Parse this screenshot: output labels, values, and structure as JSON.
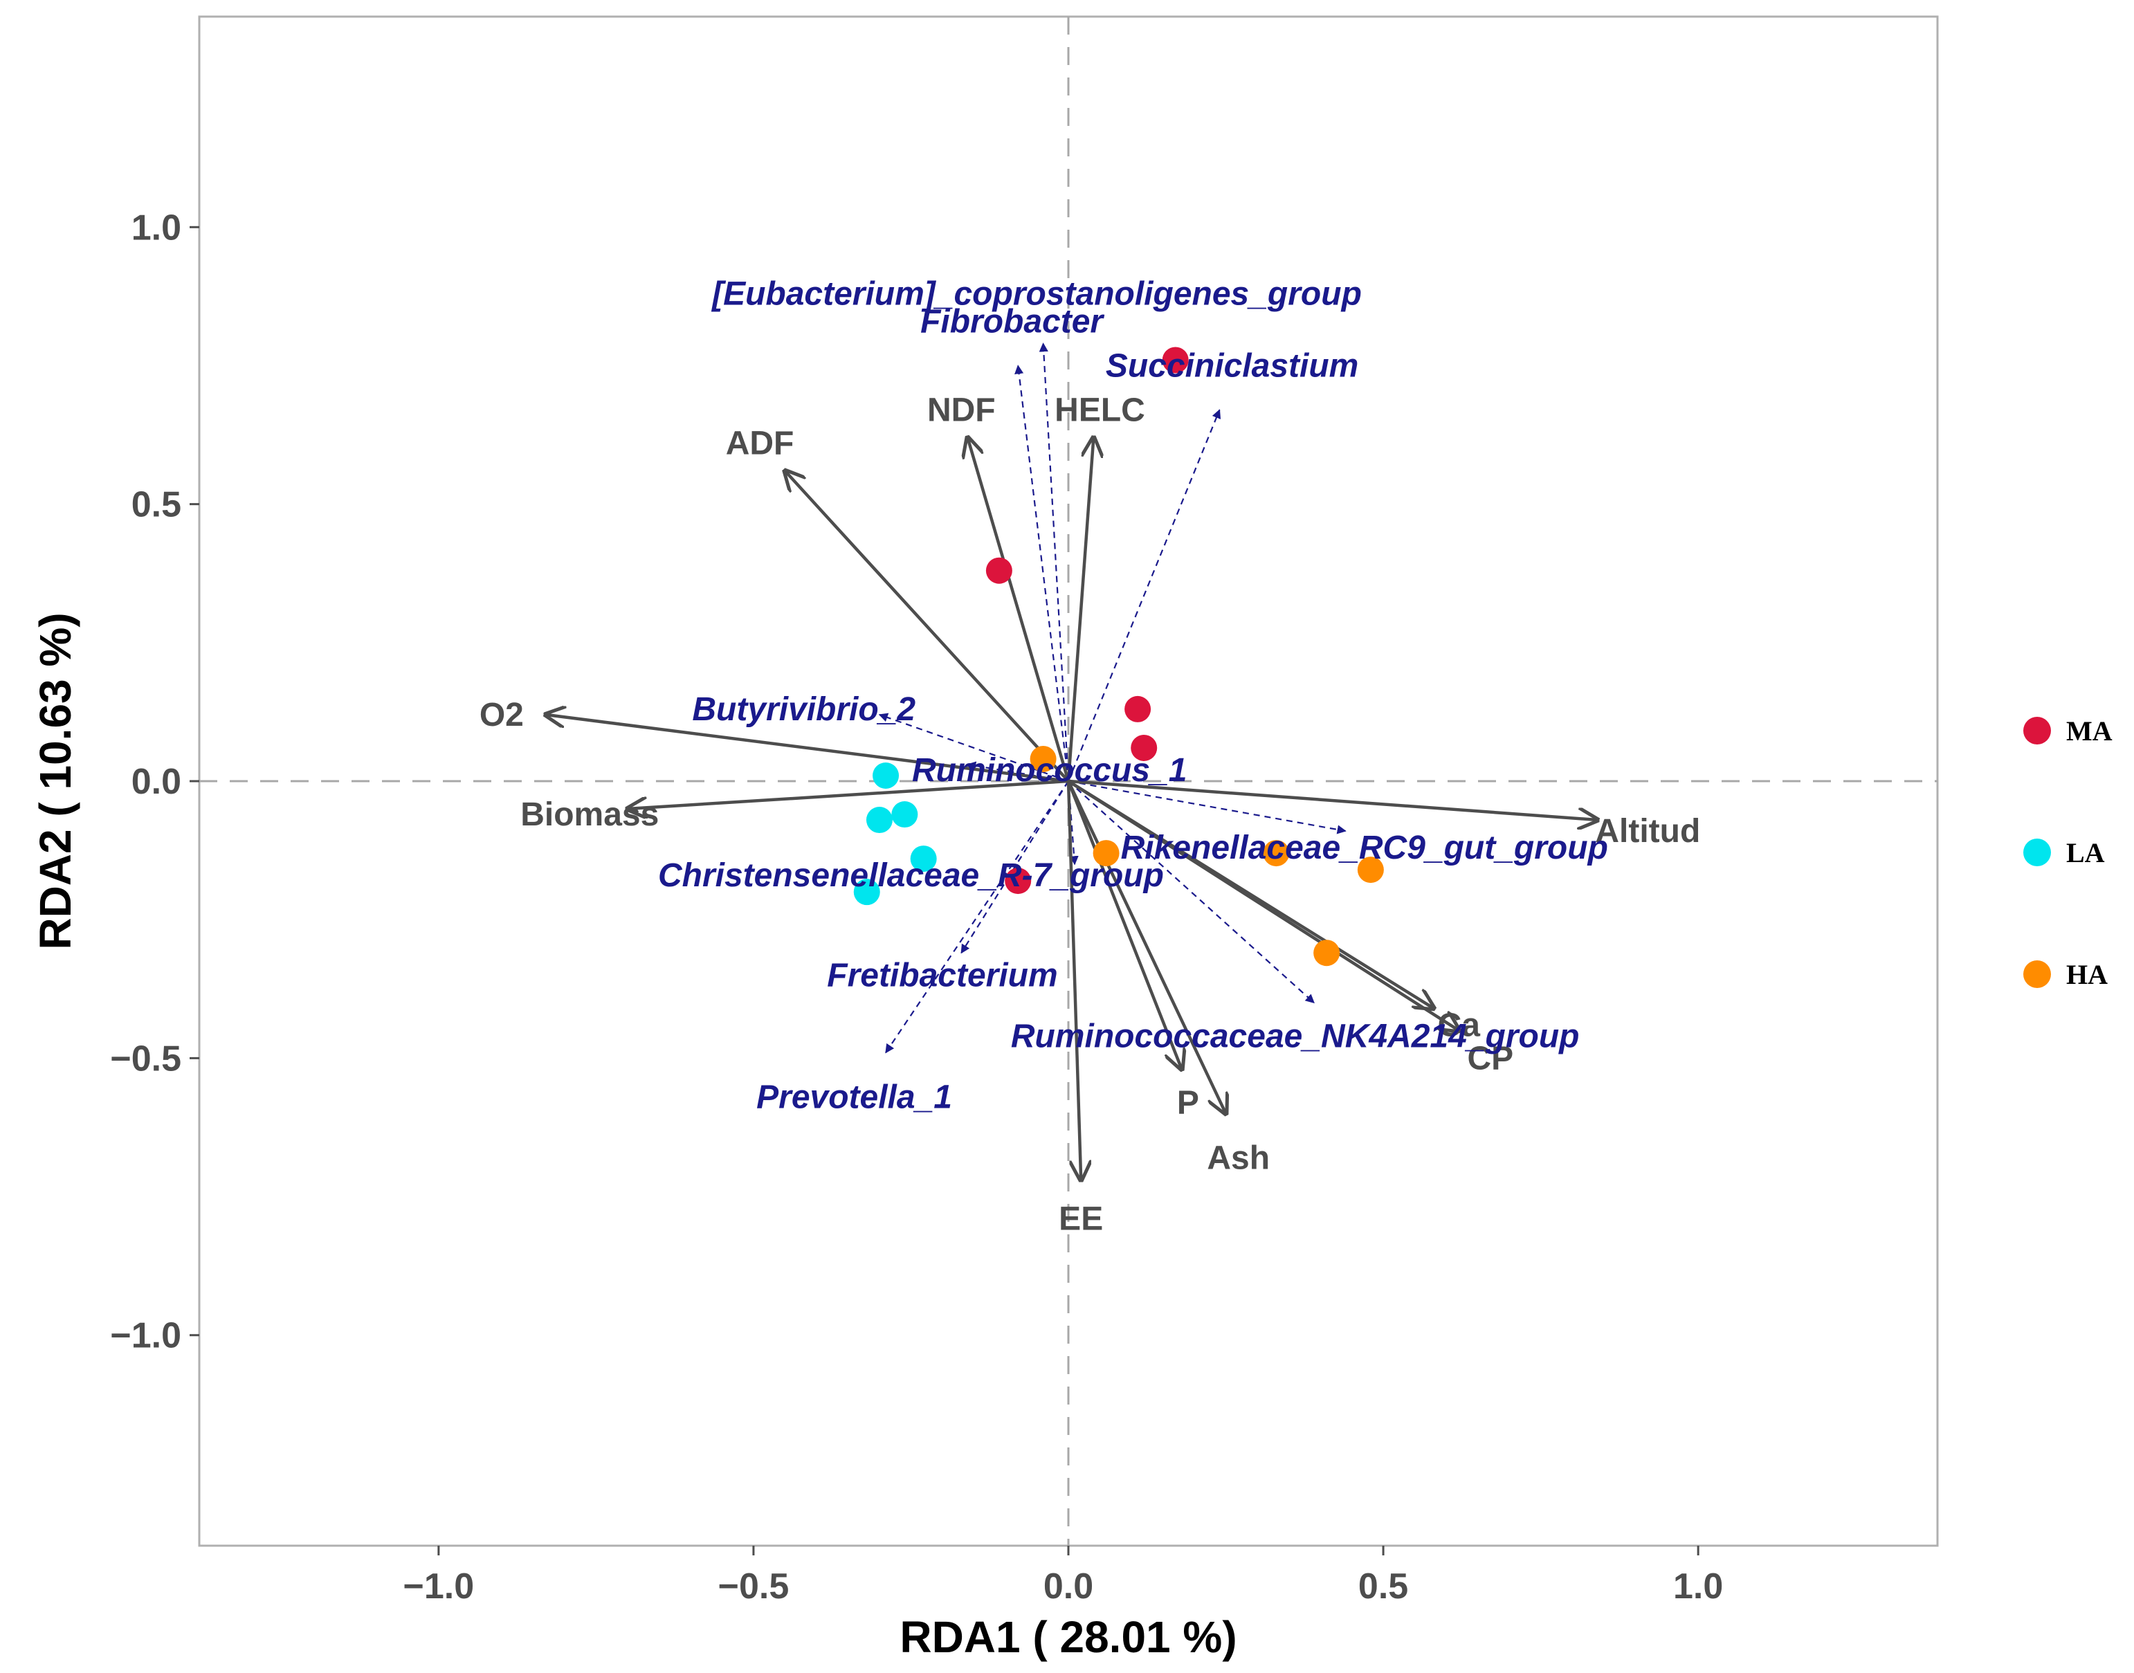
{
  "chart_data": {
    "type": "scatter",
    "subtype": "rda-biplot",
    "xlabel": "RDA1 ( 28.01 %)",
    "ylabel": "RDA2 ( 10.63 %)",
    "xlim": [
      -1.38,
      1.38
    ],
    "ylim": [
      -1.38,
      1.38
    ],
    "xticks": [
      -1.0,
      -0.5,
      0.0,
      0.5,
      1.0
    ],
    "yticks": [
      1.0,
      0.5,
      0.0,
      -0.5,
      -1.0
    ],
    "xtick_labels": [
      "−1.0",
      "−0.5",
      "0.0",
      "0.5",
      "1.0"
    ],
    "ytick_labels": [
      "1.0",
      "0.5",
      "0.0",
      "−0.5",
      "−1.0"
    ],
    "legend_position": "right",
    "groups": [
      {
        "name": "MA",
        "color": "#dc143c",
        "points": [
          [
            -0.11,
            0.38
          ],
          [
            0.11,
            0.13
          ],
          [
            0.12,
            0.06
          ],
          [
            0.17,
            0.76
          ],
          [
            -0.08,
            -0.18
          ]
        ]
      },
      {
        "name": "LA",
        "color": "#00e5ee",
        "points": [
          [
            -0.29,
            0.01
          ],
          [
            -0.3,
            -0.07
          ],
          [
            -0.26,
            -0.06
          ],
          [
            -0.23,
            -0.14
          ],
          [
            -0.32,
            -0.2
          ]
        ]
      },
      {
        "name": "HA",
        "color": "#ff8c00",
        "points": [
          [
            -0.04,
            0.04
          ],
          [
            0.06,
            -0.13
          ],
          [
            0.33,
            -0.13
          ],
          [
            0.48,
            -0.16
          ],
          [
            0.41,
            -0.31
          ]
        ]
      }
    ],
    "env_vectors": [
      {
        "name": "ADF",
        "x": -0.45,
        "y": 0.56,
        "label_x": -0.49,
        "label_y": 0.61
      },
      {
        "name": "NDF",
        "x": -0.16,
        "y": 0.62,
        "label_x": -0.17,
        "label_y": 0.67
      },
      {
        "name": "HELC",
        "x": 0.04,
        "y": 0.62,
        "label_x": 0.05,
        "label_y": 0.67
      },
      {
        "name": "O2",
        "x": -0.83,
        "y": 0.12,
        "label_x": -0.9,
        "label_y": 0.12
      },
      {
        "name": "Biomass",
        "x": -0.7,
        "y": -0.05,
        "label_x": -0.76,
        "label_y": -0.06
      },
      {
        "name": "Altitud",
        "x": 0.84,
        "y": -0.07,
        "label_x": 0.92,
        "label_y": -0.09
      },
      {
        "name": "Ca",
        "x": 0.58,
        "y": -0.41,
        "label_x": 0.62,
        "label_y": -0.44
      },
      {
        "name": "CP",
        "x": 0.62,
        "y": -0.45,
        "label_x": 0.67,
        "label_y": -0.5
      },
      {
        "name": "P",
        "x": 0.18,
        "y": -0.52,
        "label_x": 0.19,
        "label_y": -0.58
      },
      {
        "name": "Ash",
        "x": 0.25,
        "y": -0.6,
        "label_x": 0.27,
        "label_y": -0.68
      },
      {
        "name": "EE",
        "x": 0.02,
        "y": -0.72,
        "label_x": 0.02,
        "label_y": -0.79
      }
    ],
    "species_vectors": [
      {
        "name": "[Eubacterium]_coprostanoligenes_group",
        "x": -0.04,
        "y": 0.79,
        "label_x": -0.05,
        "label_y": 0.88
      },
      {
        "name": "Fibrobacter",
        "x": -0.08,
        "y": 0.75,
        "label_x": -0.09,
        "label_y": 0.83
      },
      {
        "name": "Succiniclastium",
        "x": 0.24,
        "y": 0.67,
        "label_x": 0.26,
        "label_y": 0.75
      },
      {
        "name": "Butyrivibrio_2",
        "x": -0.3,
        "y": 0.12,
        "label_x": -0.42,
        "label_y": 0.13
      },
      {
        "name": "Ruminococcus_1",
        "x": -0.16,
        "y": 0.03,
        "label_x": -0.03,
        "label_y": 0.02
      },
      {
        "name": "Rikenellaceae_RC9_gut_group",
        "x": 0.44,
        "y": -0.09,
        "label_x": 0.47,
        "label_y": -0.12
      },
      {
        "name": "Christensenellaceae_R-7_group",
        "x": 0.01,
        "y": -0.15,
        "label_x": -0.25,
        "label_y": -0.17
      },
      {
        "name": "Fretibacterium",
        "x": -0.17,
        "y": -0.31,
        "label_x": -0.2,
        "label_y": -0.35
      },
      {
        "name": "Ruminococcaceae_NK4A214_group",
        "x": 0.39,
        "y": -0.4,
        "label_x": 0.36,
        "label_y": -0.46
      },
      {
        "name": "Prevotella_1",
        "x": -0.29,
        "y": -0.49,
        "label_x": -0.34,
        "label_y": -0.57
      }
    ]
  }
}
